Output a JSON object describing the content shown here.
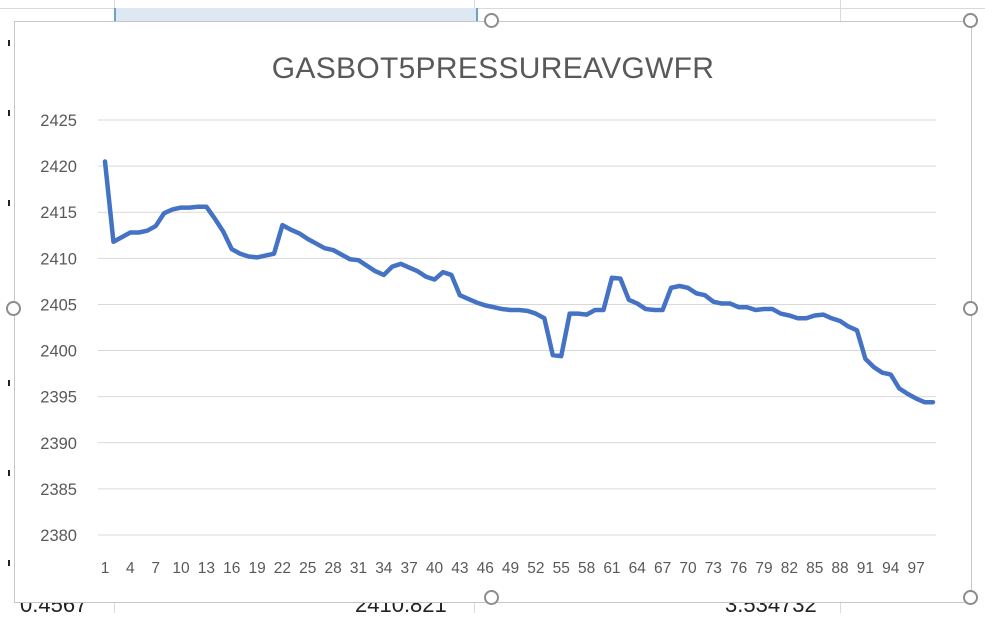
{
  "sheet": {
    "bottom_cells": [
      "0.4567",
      "2410.821",
      "3.534732"
    ]
  },
  "chart_data": {
    "type": "line",
    "title": "GASBOT5PRESSUREAVGWFR",
    "xlabel": "",
    "ylabel": "",
    "ylim": [
      2380,
      2425
    ],
    "yticks": [
      2380,
      2385,
      2390,
      2395,
      2400,
      2405,
      2410,
      2415,
      2420,
      2425
    ],
    "grid": true,
    "legend": "none",
    "x_tick_labels": [
      "1",
      "4",
      "7",
      "10",
      "13",
      "16",
      "19",
      "22",
      "25",
      "28",
      "31",
      "34",
      "37",
      "40",
      "43",
      "46",
      "49",
      "52",
      "55",
      "58",
      "61",
      "64",
      "67",
      "70",
      "73",
      "76",
      "79",
      "82",
      "85",
      "88",
      "91",
      "94",
      "97"
    ],
    "x": [
      1,
      2,
      3,
      4,
      5,
      6,
      7,
      8,
      9,
      10,
      11,
      12,
      13,
      14,
      15,
      16,
      17,
      18,
      19,
      20,
      21,
      22,
      23,
      24,
      25,
      26,
      27,
      28,
      29,
      30,
      31,
      32,
      33,
      34,
      35,
      36,
      37,
      38,
      39,
      40,
      41,
      42,
      43,
      44,
      45,
      46,
      47,
      48,
      49,
      50,
      51,
      52,
      53,
      54,
      55,
      56,
      57,
      58,
      59,
      60,
      61,
      62,
      63,
      64,
      65,
      66,
      67,
      68,
      69,
      70,
      71,
      72,
      73,
      74,
      75,
      76,
      77,
      78,
      79,
      80,
      81,
      82,
      83,
      84,
      85,
      86,
      87,
      88,
      89,
      90,
      91,
      92,
      93,
      94,
      95,
      96,
      97,
      98,
      99
    ],
    "series": [
      {
        "color": "#4472c4",
        "values": [
          2420.5,
          2411.8,
          2412.3,
          2412.8,
          2412.8,
          2413.0,
          2413.5,
          2414.9,
          2415.3,
          2415.5,
          2415.5,
          2415.6,
          2415.6,
          2414.3,
          2412.9,
          2411.0,
          2410.5,
          2410.2,
          2410.1,
          2410.3,
          2410.5,
          2413.6,
          2413.1,
          2412.7,
          2412.1,
          2411.6,
          2411.1,
          2410.9,
          2410.4,
          2409.9,
          2409.8,
          2409.2,
          2408.6,
          2408.2,
          2409.1,
          2409.4,
          2409.0,
          2408.6,
          2408.0,
          2407.7,
          2408.5,
          2408.2,
          2406.0,
          2405.6,
          2405.2,
          2404.9,
          2404.7,
          2404.5,
          2404.4,
          2404.4,
          2404.3,
          2404.0,
          2403.5,
          2399.5,
          2399.4,
          2404.0,
          2404.0,
          2403.9,
          2404.4,
          2404.4,
          2407.9,
          2407.8,
          2405.5,
          2405.1,
          2404.5,
          2404.4,
          2404.4,
          2406.8,
          2407.0,
          2406.8,
          2406.2,
          2406.0,
          2405.3,
          2405.1,
          2405.1,
          2404.7,
          2404.7,
          2404.4,
          2404.5,
          2404.5,
          2404.0,
          2403.8,
          2403.5,
          2403.5,
          2403.8,
          2403.9,
          2403.5,
          2403.2,
          2402.6,
          2402.2,
          2399.1,
          2398.2,
          2397.6,
          2397.4,
          2395.9,
          2395.3,
          2394.8,
          2394.4,
          2394.4
        ]
      }
    ]
  }
}
